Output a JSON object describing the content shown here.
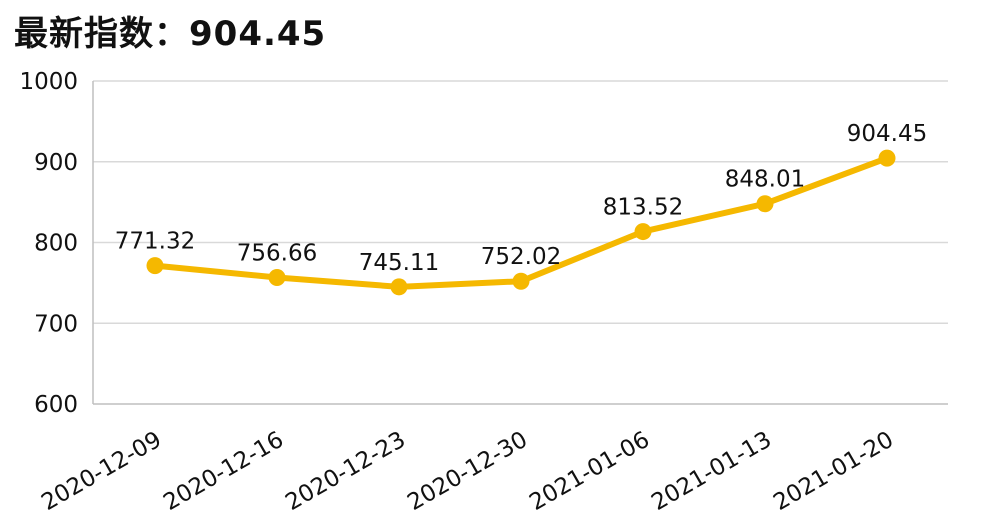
{
  "title": "最新指数：904.45",
  "colors": {
    "line": "#F5B800",
    "grid": "#d9d9d9",
    "axis": "#bfbfbf"
  },
  "chart_data": {
    "type": "line",
    "title": "最新指数：904.45",
    "xlabel": "",
    "ylabel": "",
    "categories": [
      "2020-12-09",
      "2020-12-16",
      "2020-12-23",
      "2020-12-30",
      "2021-01-06",
      "2021-01-13",
      "2021-01-20"
    ],
    "series": [
      {
        "values": [
          771.32,
          756.66,
          745.11,
          752.02,
          813.52,
          848.01,
          904.45
        ],
        "labels": [
          "771.32",
          "756.66",
          "745.11",
          "752.02",
          "813.52",
          "848.01",
          "904.45"
        ]
      }
    ],
    "ylim": [
      600,
      1000
    ],
    "yticks": [
      "600",
      "700",
      "800",
      "900",
      "1000"
    ],
    "grid": true,
    "legend": "none"
  }
}
